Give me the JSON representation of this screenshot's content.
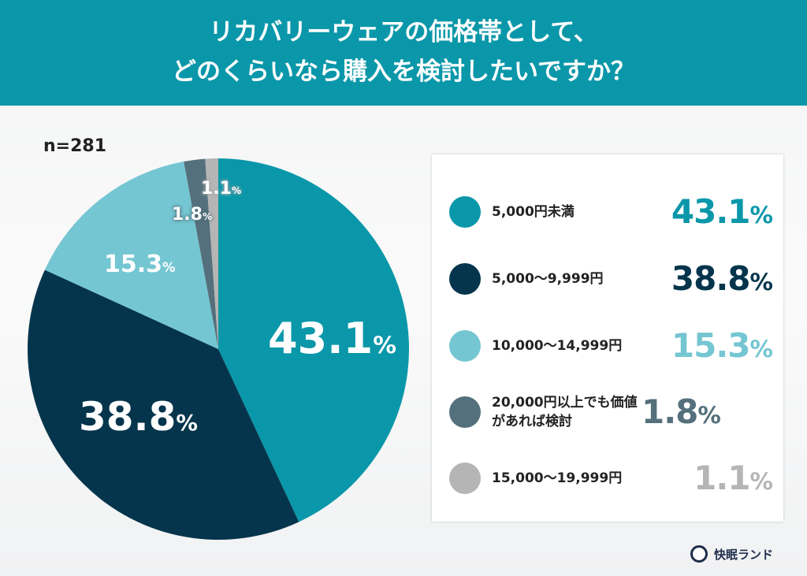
{
  "header": {
    "title_line1": "リカバリーウェアの価格帯として、",
    "title_line2": "どのくらいなら購入を検討したいですか？"
  },
  "sample": "n=281",
  "brand": {
    "name": "快眠ランド"
  },
  "chart_data": {
    "type": "pie",
    "title": "リカバリーウェアの価格帯として、どのくらいなら購入を検討したいですか？",
    "n": 281,
    "categories": [
      "5,000円未満",
      "5,000〜9,999円",
      "10,000〜14,999円",
      "20,000円以上でも価値があれば検討",
      "15,000〜19,999円"
    ],
    "values": [
      43.1,
      38.8,
      15.3,
      1.8,
      1.1
    ],
    "colors": [
      "#0a97a9",
      "#04354c",
      "#74c6d2",
      "#54707c",
      "#b5b5b5"
    ],
    "legend_position": "right"
  },
  "legend": [
    {
      "label": "5,000円未満",
      "value": "43.1",
      "unit": "%",
      "color": "#0a97a9"
    },
    {
      "label": "5,000〜9,999円",
      "value": "38.8",
      "unit": "%",
      "color": "#04354c"
    },
    {
      "label": "10,000〜14,999円",
      "value": "15.3",
      "unit": "%",
      "color": "#74c6d2"
    },
    {
      "label": "20,000円以上でも価値があれば検討",
      "value": "1.8",
      "unit": "%",
      "color": "#54707c"
    },
    {
      "label": "15,000〜19,999円",
      "value": "1.1",
      "unit": "%",
      "color": "#b5b5b5"
    }
  ],
  "pie_labels": [
    {
      "value": "43.1",
      "unit": "%"
    },
    {
      "value": "38.8",
      "unit": "%"
    },
    {
      "value": "15.3",
      "unit": "%"
    },
    {
      "value": "1.8",
      "unit": "%"
    },
    {
      "value": "1.1",
      "unit": "%"
    }
  ]
}
